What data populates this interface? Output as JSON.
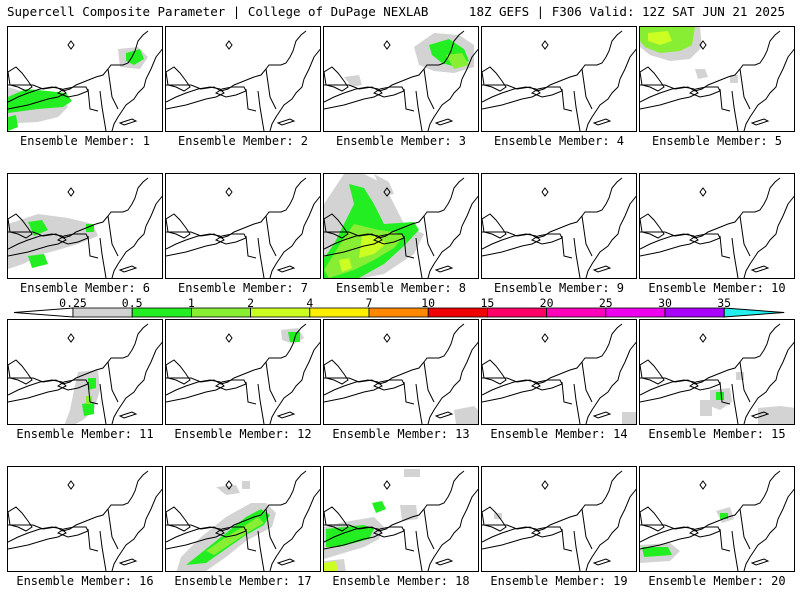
{
  "header": {
    "title": "Supercell Composite Parameter | College of DuPage NEXLAB",
    "run_info": "18Z GEFS | F306 Valid: 12Z SAT JUN 21 2025"
  },
  "legend": {
    "levels": [
      "0.25",
      "0.5",
      "1",
      "2",
      "4",
      "7",
      "10",
      "15",
      "20",
      "25",
      "30",
      "35"
    ],
    "colors": [
      "#d3d3d3",
      "#22ee22",
      "#88ee33",
      "#ccff22",
      "#ffee00",
      "#ff8800",
      "#ee0000",
      "#ff0066",
      "#ff00bb",
      "#ee00ee",
      "#aa00ff",
      "#bb55dd",
      "#22eeee"
    ]
  },
  "members": [
    {
      "label": "Ensemble Member: 1"
    },
    {
      "label": "Ensemble Member: 2"
    },
    {
      "label": "Ensemble Member: 3"
    },
    {
      "label": "Ensemble Member: 4"
    },
    {
      "label": "Ensemble Member: 5"
    },
    {
      "label": "Ensemble Member: 6"
    },
    {
      "label": "Ensemble Member: 7"
    },
    {
      "label": "Ensemble Member: 8"
    },
    {
      "label": "Ensemble Member: 9"
    },
    {
      "label": "Ensemble Member: 10"
    },
    {
      "label": "Ensemble Member: 11"
    },
    {
      "label": "Ensemble Member: 12"
    },
    {
      "label": "Ensemble Member: 13"
    },
    {
      "label": "Ensemble Member: 14"
    },
    {
      "label": "Ensemble Member: 15"
    },
    {
      "label": "Ensemble Member: 16"
    },
    {
      "label": "Ensemble Member: 17"
    },
    {
      "label": "Ensemble Member: 18"
    },
    {
      "label": "Ensemble Member: 19"
    },
    {
      "label": "Ensemble Member: 20"
    }
  ]
}
